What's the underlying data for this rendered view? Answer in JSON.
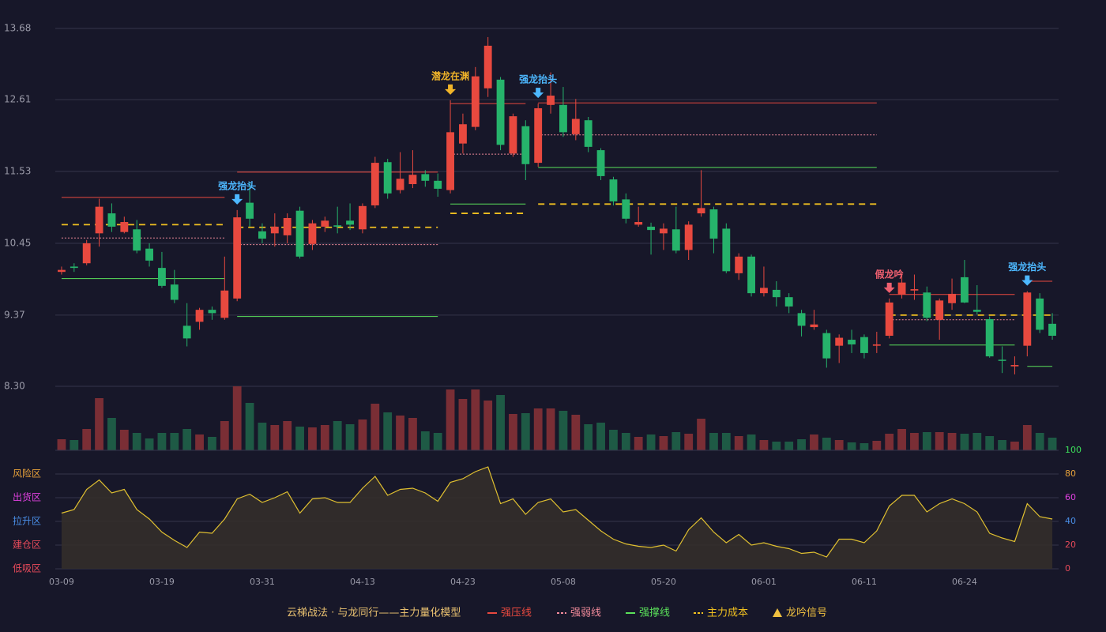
{
  "chart_data": [
    {
      "type": "candlestick",
      "ylim": [
        8.3,
        13.68
      ],
      "yticks": [
        {
          "value": 8.3,
          "label": "8.30"
        },
        9.37,
        10.45,
        11.53,
        12.61,
        13.68
      ],
      "grid": true,
      "up_color": "#e8493f",
      "down_color": "#26b36b",
      "categories": [
        "03-09",
        null,
        null,
        null,
        null,
        null,
        null,
        null,
        "03-19",
        null,
        null,
        null,
        null,
        null,
        null,
        null,
        "03-31",
        null,
        null,
        null,
        null,
        null,
        null,
        null,
        "04-13",
        null,
        null,
        null,
        null,
        null,
        null,
        null,
        "04-23",
        null,
        null,
        null,
        null,
        null,
        null,
        null,
        "05-08",
        null,
        null,
        null,
        null,
        null,
        null,
        null,
        "05-20",
        null,
        null,
        null,
        null,
        null,
        null,
        null,
        "06-01",
        null,
        null,
        null,
        null,
        null,
        null,
        null,
        "06-11",
        null,
        null,
        null,
        null,
        null,
        null,
        null,
        "06-24",
        null,
        null,
        null,
        null,
        null,
        null,
        null
      ],
      "open": [
        10.02,
        10.1,
        10.15,
        10.6,
        10.9,
        10.62,
        10.66,
        10.37,
        10.08,
        9.83,
        9.21,
        9.27,
        9.45,
        9.33,
        9.62,
        11.06,
        10.63,
        10.6,
        10.57,
        10.94,
        10.44,
        10.7,
        10.72,
        10.79,
        10.66,
        11.02,
        11.67,
        11.25,
        11.34,
        11.49,
        11.39,
        11.25,
        11.95,
        12.2,
        12.78,
        12.91,
        11.8,
        12.21,
        11.66,
        12.53,
        12.53,
        12.09,
        12.3,
        11.85,
        11.41,
        11.11,
        10.73,
        10.7,
        10.6,
        10.66,
        10.35,
        10.9,
        10.96,
        10.67,
        10.0,
        10.25,
        9.7,
        9.75,
        9.64,
        9.4,
        9.19,
        9.1,
        8.91,
        9.0,
        9.04,
        8.91,
        9.06,
        9.68,
        9.74,
        9.71,
        9.3,
        9.55,
        9.94,
        9.45,
        9.31,
        8.7,
        8.6,
        8.91,
        9.62,
        9.24
      ],
      "high": [
        10.1,
        10.15,
        10.5,
        11.12,
        11.05,
        10.85,
        10.8,
        10.45,
        10.32,
        10.05,
        9.55,
        9.48,
        9.5,
        10.25,
        10.95,
        11.36,
        10.75,
        10.9,
        10.9,
        11.0,
        10.8,
        10.85,
        11.0,
        11.05,
        11.05,
        11.75,
        11.72,
        11.82,
        11.85,
        11.55,
        11.5,
        12.6,
        12.4,
        13.1,
        13.55,
        12.95,
        12.4,
        12.3,
        12.55,
        13.02,
        12.8,
        12.62,
        12.35,
        11.88,
        11.45,
        11.2,
        11.0,
        10.76,
        10.75,
        11.0,
        10.78,
        11.55,
        11.0,
        10.75,
        10.3,
        10.28,
        10.1,
        9.88,
        9.7,
        9.45,
        9.45,
        9.15,
        9.08,
        9.15,
        9.08,
        9.12,
        9.62,
        10.0,
        9.98,
        9.8,
        9.62,
        9.92,
        10.2,
        9.82,
        9.35,
        8.9,
        8.75,
        9.73,
        9.7,
        9.4
      ],
      "low": [
        9.98,
        10.02,
        10.12,
        10.4,
        10.62,
        10.6,
        10.3,
        10.1,
        9.78,
        9.55,
        8.9,
        9.15,
        9.3,
        9.3,
        9.58,
        10.7,
        10.45,
        10.4,
        10.45,
        10.22,
        10.35,
        10.62,
        10.6,
        10.65,
        10.6,
        10.98,
        11.12,
        11.2,
        11.28,
        11.3,
        11.15,
        11.2,
        11.8,
        12.15,
        12.65,
        11.85,
        11.75,
        11.4,
        11.6,
        12.4,
        12.05,
        12.0,
        11.82,
        11.4,
        11.02,
        10.75,
        10.7,
        10.28,
        10.35,
        10.3,
        10.2,
        10.85,
        10.3,
        10.0,
        9.9,
        9.65,
        9.65,
        9.5,
        9.4,
        9.05,
        9.15,
        8.58,
        8.65,
        8.8,
        8.72,
        8.8,
        9.02,
        9.62,
        9.6,
        9.28,
        9.0,
        9.45,
        9.55,
        9.38,
        8.73,
        8.5,
        8.48,
        8.75,
        9.1,
        9.0
      ],
      "close": [
        10.05,
        10.08,
        10.45,
        11.0,
        10.7,
        10.77,
        10.34,
        10.19,
        9.81,
        9.6,
        9.02,
        9.45,
        9.4,
        9.74,
        10.84,
        10.82,
        10.52,
        10.7,
        10.83,
        10.25,
        10.75,
        10.79,
        10.7,
        10.73,
        11.01,
        11.66,
        11.2,
        11.42,
        11.48,
        11.39,
        11.27,
        12.12,
        12.24,
        12.96,
        13.42,
        11.93,
        12.36,
        11.64,
        12.48,
        12.67,
        12.12,
        12.32,
        11.9,
        11.46,
        11.08,
        10.82,
        10.77,
        10.65,
        10.67,
        10.34,
        10.73,
        10.98,
        10.52,
        10.03,
        10.25,
        9.7,
        9.78,
        9.64,
        9.5,
        9.21,
        9.23,
        8.72,
        9.03,
        8.93,
        8.8,
        8.93,
        9.56,
        9.86,
        9.76,
        9.33,
        9.59,
        9.69,
        9.56,
        9.42,
        8.75,
        8.69,
        8.62,
        9.71,
        9.15,
        9.06
      ],
      "levels": [
        {
          "name": "强压线",
          "color": "#e8493f",
          "style": "solid",
          "segments": [
            {
              "from": 0,
              "to": 13,
              "value": 11.14
            },
            {
              "from": 14,
              "to": 30,
              "value": 11.52
            },
            {
              "from": 31,
              "to": 37,
              "value": 12.55
            },
            {
              "from": 38,
              "to": 65,
              "value": 12.56
            },
            {
              "from": 66,
              "to": 76,
              "value": 9.68
            },
            {
              "from": 77,
              "to": 79,
              "value": 9.88
            }
          ]
        },
        {
          "name": "强弱线",
          "color": "#f08a9a",
          "style": "dotted",
          "segments": [
            {
              "from": 0,
              "to": 13,
              "value": 10.53
            },
            {
              "from": 14,
              "to": 30,
              "value": 10.43
            },
            {
              "from": 31,
              "to": 37,
              "value": 11.79
            },
            {
              "from": 38,
              "to": 65,
              "value": 12.08
            },
            {
              "from": 66,
              "to": 76,
              "value": 9.3
            }
          ]
        },
        {
          "name": "强撑线",
          "color": "#5ae05a",
          "style": "solid",
          "segments": [
            {
              "from": 0,
              "to": 13,
              "value": 9.92
            },
            {
              "from": 14,
              "to": 30,
              "value": 9.35
            },
            {
              "from": 31,
              "to": 37,
              "value": 11.04
            },
            {
              "from": 38,
              "to": 65,
              "value": 11.59
            },
            {
              "from": 66,
              "to": 76,
              "value": 8.92
            },
            {
              "from": 77,
              "to": 79,
              "value": 8.6
            }
          ]
        },
        {
          "name": "主力成本",
          "color": "#f0c020",
          "style": "dashed",
          "segments": [
            {
              "from": 0,
              "to": 13,
              "value": 10.73
            },
            {
              "from": 14,
              "to": 30,
              "value": 10.69
            },
            {
              "from": 31,
              "to": 37,
              "value": 10.9
            },
            {
              "from": 38,
              "to": 65,
              "value": 11.04
            },
            {
              "from": 66,
              "to": 79,
              "value": 9.37
            }
          ]
        }
      ],
      "signals": [
        {
          "index": 14,
          "text": "强龙抬头",
          "color": "#4db8ff"
        },
        {
          "index": 31,
          "text": "潜龙在渊",
          "color": "#f0b429"
        },
        {
          "index": 38,
          "text": "强龙抬头",
          "color": "#4db8ff"
        },
        {
          "index": 66,
          "text": "假龙吟",
          "color": "#f06070"
        },
        {
          "index": 77,
          "text": "强龙抬头",
          "color": "#4db8ff"
        }
      ],
      "legend": {
        "title": "云梯战法 · 与龙同行——主力量化模型",
        "color": "#e8c070"
      },
      "signal_legend": {
        "name": "龙吟信号",
        "color": "#f0c040"
      }
    },
    {
      "type": "bar",
      "up_color": "#7a2e35",
      "down_color": "#1e5a45",
      "values": [
        14,
        13,
        27,
        66,
        41,
        26,
        22,
        15,
        22,
        22,
        27,
        20,
        17,
        37,
        81,
        60,
        35,
        32,
        37,
        30,
        29,
        32,
        37,
        33,
        39,
        59,
        48,
        44,
        41,
        24,
        22,
        77,
        65,
        77,
        63,
        70,
        46,
        47,
        53,
        53,
        50,
        45,
        33,
        35,
        26,
        22,
        17,
        20,
        18,
        23,
        21,
        40,
        22,
        22,
        18,
        20,
        13,
        11,
        11,
        14,
        20,
        16,
        13,
        10,
        9,
        12,
        21,
        27,
        22,
        23,
        23,
        22,
        21,
        22,
        18,
        13,
        11,
        32,
        22,
        16
      ]
    },
    {
      "type": "line",
      "color": "#e0c030",
      "fill": "#352f2a",
      "ylim": [
        0,
        100
      ],
      "yticks": [
        0,
        20,
        40,
        60,
        80,
        100
      ],
      "ytick_colors": [
        "#e84a5a",
        "#e84a5a",
        "#4a8fe8",
        "#e040e0",
        "#e8a23a",
        "#3ce05a"
      ],
      "zones": [
        {
          "value": 0,
          "label": "低吸区",
          "color": "#e84a5a"
        },
        {
          "value": 20,
          "label": "建仓区",
          "color": "#e84a5a"
        },
        {
          "value": 40,
          "label": "拉升区",
          "color": "#4a8fe8"
        },
        {
          "value": 60,
          "label": "出货区",
          "color": "#e040e0"
        },
        {
          "value": 80,
          "label": "风险区",
          "color": "#e8a23a"
        }
      ],
      "values": [
        47,
        50,
        67,
        75,
        64,
        67,
        50,
        42,
        31,
        24,
        18,
        31,
        30,
        42,
        59,
        63,
        56,
        60,
        65,
        47,
        59,
        60,
        56,
        56,
        68,
        78,
        62,
        67,
        68,
        64,
        57,
        73,
        76,
        82,
        86,
        55,
        59,
        46,
        56,
        59,
        48,
        50,
        41,
        32,
        25,
        21,
        19,
        18,
        20,
        15,
        33,
        43,
        31,
        22,
        29,
        20,
        22,
        19,
        17,
        13,
        14,
        10,
        25,
        25,
        22,
        32,
        53,
        62,
        62,
        48,
        55,
        59,
        55,
        48,
        30,
        26,
        23,
        55,
        44,
        42
      ]
    }
  ]
}
